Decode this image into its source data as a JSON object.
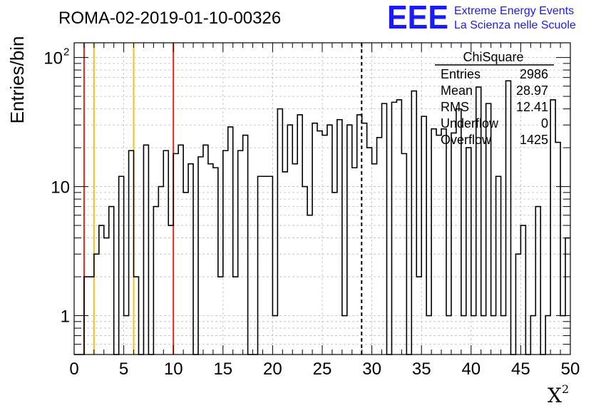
{
  "chart_data": {
    "type": "bar",
    "title": "ROMA-02-2019-01-10-00326",
    "xlabel": "X",
    "xlabel_superscript": "2",
    "ylabel": "Entries/bin",
    "xlim": [
      0,
      50
    ],
    "ylim": [
      0.5,
      130
    ],
    "log_y": true,
    "grid": true,
    "bin_width": 0.5,
    "bin_start": 0,
    "values": [
      0,
      0,
      2,
      2,
      3,
      5,
      4,
      7,
      0,
      12,
      1,
      19,
      2,
      0,
      21,
      0,
      7,
      10,
      19,
      5,
      18,
      21,
      9,
      15,
      0,
      17,
      21,
      15,
      14,
      2,
      19,
      29,
      2,
      19,
      25,
      0,
      0,
      12,
      12,
      12,
      1,
      40,
      13,
      30,
      15,
      36,
      10,
      6,
      31,
      27,
      25,
      30,
      9,
      33,
      1,
      30,
      14,
      36,
      31,
      20,
      15,
      24,
      44,
      0,
      45,
      47,
      18,
      0,
      55,
      2,
      35,
      1,
      28,
      25,
      28,
      1,
      26,
      40,
      1,
      20,
      1,
      59,
      1,
      44,
      1,
      12,
      1,
      66,
      0,
      3,
      5,
      0,
      1,
      7,
      0,
      1,
      47,
      22,
      1,
      4
    ],
    "x_ticks": [
      "0",
      "5",
      "10",
      "15",
      "20",
      "25",
      "30",
      "35",
      "40",
      "45",
      "50"
    ],
    "x_tick_values": [
      0,
      5,
      10,
      15,
      20,
      25,
      30,
      35,
      40,
      45,
      50
    ],
    "y_ticks": [
      {
        "value": 1,
        "base": "1",
        "exp": ""
      },
      {
        "value": 10,
        "base": "10",
        "exp": ""
      },
      {
        "value": 100,
        "base": "10",
        "exp": "2"
      }
    ],
    "vertical_lines": [
      {
        "x": 1,
        "color": "#e8251d",
        "style": "solid"
      },
      {
        "x": 2,
        "color": "#f2c020",
        "style": "solid"
      },
      {
        "x": 6,
        "color": "#f2c020",
        "style": "solid"
      },
      {
        "x": 10,
        "color": "#e8251d",
        "style": "solid"
      },
      {
        "x": 28.97,
        "color": "#000000",
        "style": "dashed"
      }
    ],
    "stats_box": {
      "title": "ChiSquare",
      "rows": [
        {
          "label": "Entries",
          "value": "2986"
        },
        {
          "label": "Mean",
          "value": "28.97"
        },
        {
          "label": "RMS",
          "value": "12.41"
        },
        {
          "label": "Underflow",
          "value": "0"
        },
        {
          "label": "Overflow",
          "value": "1425"
        }
      ]
    }
  },
  "logo": {
    "mark": "EEE",
    "line1": "Extreme Energy Events",
    "line2": "La Scienza nelle Scuole",
    "color": "#1a1aff"
  }
}
